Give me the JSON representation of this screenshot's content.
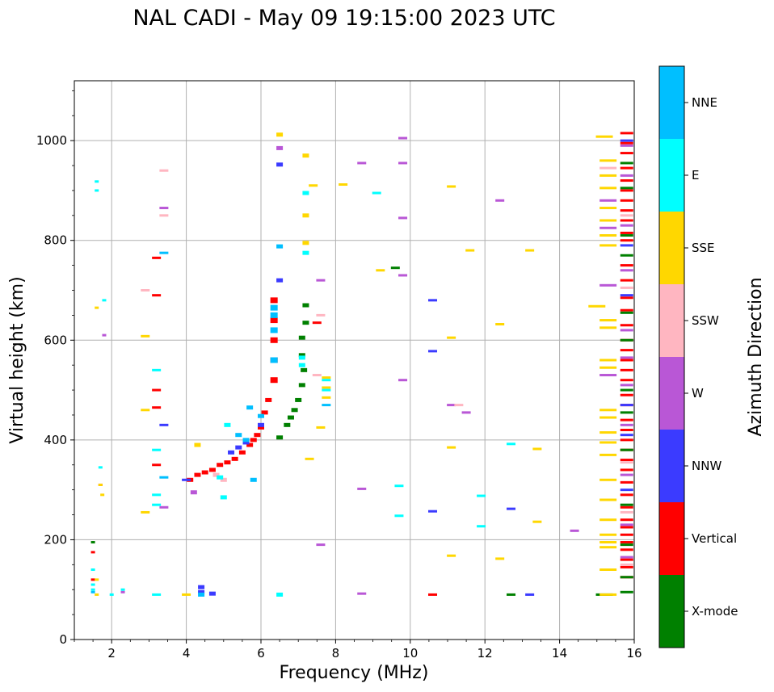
{
  "chart_data": {
    "type": "scatter",
    "title": "NAL CADI - May 09 19:15:00 2023 UTC",
    "xlabel": "Frequency (MHz)",
    "ylabel": "Virtual height (km)",
    "xlim": [
      1,
      16
    ],
    "ylim": [
      0,
      1120
    ],
    "xticks": [
      2,
      4,
      6,
      8,
      10,
      12,
      14,
      16
    ],
    "yticks": [
      0,
      200,
      400,
      600,
      800,
      1000
    ],
    "grid": true,
    "colorbar": {
      "label": "Azimuth Direction",
      "categories": [
        {
          "name": "X-mode",
          "color": "#008000"
        },
        {
          "name": "Vertical",
          "color": "#ff0000"
        },
        {
          "name": "NNW",
          "color": "#3b3bff"
        },
        {
          "name": "W",
          "color": "#b957d6"
        },
        {
          "name": "SSW",
          "color": "#ffb6c1"
        },
        {
          "name": "SSE",
          "color": "#ffd700"
        },
        {
          "name": "E",
          "color": "#00ffff"
        },
        {
          "name": "NNE",
          "color": "#00bfff"
        }
      ]
    },
    "series": [
      {
        "name": "Vertical",
        "points": [
          [
            4.1,
            320
          ],
          [
            4.3,
            330
          ],
          [
            4.5,
            335
          ],
          [
            4.7,
            340
          ],
          [
            4.9,
            350
          ],
          [
            5.1,
            355
          ],
          [
            5.3,
            362
          ],
          [
            5.5,
            375
          ],
          [
            5.7,
            390
          ],
          [
            5.8,
            400
          ],
          [
            5.9,
            410
          ],
          [
            6.0,
            425
          ],
          [
            6.1,
            455
          ],
          [
            6.2,
            480
          ],
          [
            6.35,
            520
          ],
          [
            6.35,
            560
          ],
          [
            6.35,
            600
          ],
          [
            6.35,
            640
          ],
          [
            6.35,
            680
          ],
          [
            1.5,
            175
          ],
          [
            1.5,
            120
          ],
          [
            1.7,
            310
          ],
          [
            3.2,
            500
          ],
          [
            3.2,
            465
          ],
          [
            3.2,
            350
          ],
          [
            3.2,
            765
          ],
          [
            3.2,
            690
          ],
          [
            7.5,
            635
          ],
          [
            10.6,
            90
          ],
          [
            15.8,
            1015
          ],
          [
            15.8,
            995
          ],
          [
            15.8,
            975
          ],
          [
            15.8,
            945
          ],
          [
            15.8,
            920
          ],
          [
            15.8,
            900
          ],
          [
            15.8,
            880
          ],
          [
            15.8,
            860
          ],
          [
            15.8,
            840
          ],
          [
            15.8,
            815
          ],
          [
            15.8,
            800
          ],
          [
            15.8,
            750
          ],
          [
            15.8,
            720
          ],
          [
            15.8,
            685
          ],
          [
            15.8,
            660
          ],
          [
            15.8,
            630
          ],
          [
            15.8,
            600
          ],
          [
            15.8,
            580
          ],
          [
            15.8,
            560
          ],
          [
            15.8,
            540
          ],
          [
            15.8,
            520
          ],
          [
            15.8,
            490
          ],
          [
            15.8,
            470
          ],
          [
            15.8,
            440
          ],
          [
            15.8,
            420
          ],
          [
            15.8,
            400
          ],
          [
            15.8,
            380
          ],
          [
            15.8,
            360
          ],
          [
            15.8,
            340
          ],
          [
            15.8,
            315
          ],
          [
            15.8,
            290
          ],
          [
            15.8,
            265
          ],
          [
            15.8,
            240
          ],
          [
            15.8,
            225
          ],
          [
            15.8,
            210
          ],
          [
            15.8,
            195
          ],
          [
            15.8,
            180
          ],
          [
            15.8,
            160
          ],
          [
            15.8,
            145
          ],
          [
            15.8,
            125
          ]
        ]
      },
      {
        "name": "X-mode",
        "points": [
          [
            6.5,
            405
          ],
          [
            6.7,
            430
          ],
          [
            6.8,
            445
          ],
          [
            6.9,
            460
          ],
          [
            7.0,
            480
          ],
          [
            7.1,
            510
          ],
          [
            7.15,
            540
          ],
          [
            7.1,
            570
          ],
          [
            7.1,
            605
          ],
          [
            7.2,
            635
          ],
          [
            7.2,
            670
          ],
          [
            9.6,
            745
          ],
          [
            12.7,
            90
          ],
          [
            15.2,
            90
          ],
          [
            15.8,
            95
          ],
          [
            15.8,
            125
          ],
          [
            15.8,
            190
          ],
          [
            15.8,
            270
          ],
          [
            15.8,
            380
          ],
          [
            15.8,
            455
          ],
          [
            15.8,
            500
          ],
          [
            15.8,
            600
          ],
          [
            15.8,
            655
          ],
          [
            15.8,
            770
          ],
          [
            15.8,
            810
          ],
          [
            15.8,
            905
          ],
          [
            15.8,
            955
          ],
          [
            1.5,
            195
          ]
        ]
      },
      {
        "name": "NNW",
        "points": [
          [
            4.4,
            95
          ],
          [
            4.4,
            105
          ],
          [
            4.7,
            92
          ],
          [
            5.2,
            375
          ],
          [
            5.4,
            385
          ],
          [
            5.6,
            395
          ],
          [
            6.0,
            430
          ],
          [
            6.5,
            720
          ],
          [
            6.5,
            952
          ],
          [
            10.6,
            680
          ],
          [
            10.6,
            578
          ],
          [
            10.6,
            257
          ],
          [
            12.7,
            262
          ],
          [
            13.2,
            90
          ],
          [
            15.8,
            300
          ],
          [
            15.8,
            410
          ],
          [
            15.8,
            470
          ],
          [
            15.8,
            690
          ],
          [
            15.8,
            790
          ],
          [
            15.8,
            1000
          ],
          [
            3.4,
            430
          ],
          [
            4.0,
            320
          ]
        ]
      },
      {
        "name": "W",
        "points": [
          [
            6.5,
            985
          ],
          [
            8.7,
            955
          ],
          [
            8.7,
            92
          ],
          [
            8.7,
            302
          ],
          [
            9.8,
            1005
          ],
          [
            9.8,
            955
          ],
          [
            9.8,
            845
          ],
          [
            9.8,
            730
          ],
          [
            9.8,
            520
          ],
          [
            11.1,
            470
          ],
          [
            11.5,
            455
          ],
          [
            12.4,
            880
          ],
          [
            14.4,
            218
          ],
          [
            15.3,
            825
          ],
          [
            15.3,
            880
          ],
          [
            15.3,
            710
          ],
          [
            15.3,
            530
          ],
          [
            15.8,
            165
          ],
          [
            15.8,
            230
          ],
          [
            15.8,
            330
          ],
          [
            15.8,
            430
          ],
          [
            15.8,
            510
          ],
          [
            15.8,
            565
          ],
          [
            15.8,
            620
          ],
          [
            15.8,
            740
          ],
          [
            15.8,
            830
          ],
          [
            15.8,
            930
          ],
          [
            15.8,
            990
          ],
          [
            7.6,
            190
          ],
          [
            7.6,
            720
          ],
          [
            3.4,
            265
          ],
          [
            3.4,
            865
          ],
          [
            4.2,
            295
          ],
          [
            1.8,
            610
          ],
          [
            2.3,
            95
          ]
        ]
      },
      {
        "name": "SSW",
        "points": [
          [
            3.4,
            940
          ],
          [
            3.4,
            850
          ],
          [
            2.9,
            700
          ],
          [
            4.8,
            330
          ],
          [
            5.0,
            320
          ],
          [
            7.6,
            650
          ],
          [
            7.5,
            530
          ],
          [
            11.3,
            470
          ],
          [
            15.3,
            945
          ],
          [
            15.8,
            705
          ],
          [
            15.8,
            850
          ],
          [
            15.8,
            355
          ],
          [
            15.8,
            255
          ],
          [
            15.8,
            150
          ]
        ]
      },
      {
        "name": "SSE",
        "points": [
          [
            6.5,
            1012
          ],
          [
            7.2,
            970
          ],
          [
            7.4,
            910
          ],
          [
            7.2,
            850
          ],
          [
            7.2,
            795
          ],
          [
            8.2,
            912
          ],
          [
            9.2,
            740
          ],
          [
            11.1,
            908
          ],
          [
            11.1,
            605
          ],
          [
            11.1,
            385
          ],
          [
            11.1,
            168
          ],
          [
            11.6,
            780
          ],
          [
            12.4,
            632
          ],
          [
            12.4,
            162
          ],
          [
            13.2,
            780
          ],
          [
            13.4,
            382
          ],
          [
            13.4,
            236
          ],
          [
            15.2,
            1008
          ],
          [
            15.3,
            960
          ],
          [
            15.3,
            930
          ],
          [
            15.3,
            905
          ],
          [
            15.3,
            865
          ],
          [
            15.3,
            840
          ],
          [
            15.3,
            810
          ],
          [
            15.3,
            790
          ],
          [
            15.0,
            668
          ],
          [
            15.3,
            640
          ],
          [
            15.3,
            625
          ],
          [
            15.3,
            560
          ],
          [
            15.3,
            545
          ],
          [
            15.3,
            460
          ],
          [
            15.3,
            445
          ],
          [
            15.3,
            415
          ],
          [
            15.3,
            395
          ],
          [
            15.3,
            370
          ],
          [
            15.3,
            320
          ],
          [
            15.3,
            280
          ],
          [
            15.3,
            240
          ],
          [
            15.3,
            210
          ],
          [
            15.3,
            195
          ],
          [
            15.3,
            185
          ],
          [
            15.3,
            140
          ],
          [
            15.3,
            90
          ],
          [
            7.75,
            485
          ],
          [
            7.75,
            505
          ],
          [
            7.75,
            525
          ],
          [
            7.3,
            362
          ],
          [
            7.6,
            425
          ],
          [
            2.9,
            608
          ],
          [
            2.9,
            460
          ],
          [
            2.9,
            255
          ],
          [
            4.0,
            90
          ],
          [
            4.3,
            390
          ],
          [
            1.6,
            665
          ],
          [
            1.7,
            310
          ],
          [
            1.6,
            90
          ],
          [
            1.6,
            120
          ],
          [
            1.75,
            290
          ]
        ]
      },
      {
        "name": "E",
        "points": [
          [
            7.1,
            550
          ],
          [
            7.1,
            565
          ],
          [
            7.75,
            500
          ],
          [
            7.75,
            520
          ],
          [
            7.2,
            895
          ],
          [
            7.2,
            775
          ],
          [
            9.1,
            895
          ],
          [
            9.7,
            308
          ],
          [
            9.7,
            248
          ],
          [
            11.9,
            288
          ],
          [
            11.9,
            227
          ],
          [
            12.7,
            392
          ],
          [
            3.2,
            540
          ],
          [
            3.2,
            380
          ],
          [
            3.2,
            290
          ],
          [
            3.2,
            270
          ],
          [
            3.2,
            90
          ],
          [
            1.6,
            900
          ],
          [
            1.6,
            918
          ],
          [
            1.8,
            680
          ],
          [
            1.7,
            345
          ],
          [
            1.5,
            100
          ],
          [
            1.5,
            110
          ],
          [
            1.5,
            140
          ],
          [
            2.0,
            90
          ],
          [
            2.3,
            100
          ],
          [
            6.5,
            90
          ],
          [
            5.0,
            285
          ],
          [
            4.9,
            325
          ],
          [
            5.1,
            430
          ]
        ]
      },
      {
        "name": "NNE",
        "points": [
          [
            6.35,
            560
          ],
          [
            6.35,
            620
          ],
          [
            6.35,
            665
          ],
          [
            6.35,
            650
          ],
          [
            6.5,
            788
          ],
          [
            7.75,
            470
          ],
          [
            5.4,
            410
          ],
          [
            5.6,
            400
          ],
          [
            5.7,
            465
          ],
          [
            5.8,
            320
          ],
          [
            3.4,
            775
          ],
          [
            3.4,
            325
          ],
          [
            1.5,
            95
          ],
          [
            4.4,
            90
          ],
          [
            6.0,
            448
          ]
        ]
      }
    ]
  }
}
